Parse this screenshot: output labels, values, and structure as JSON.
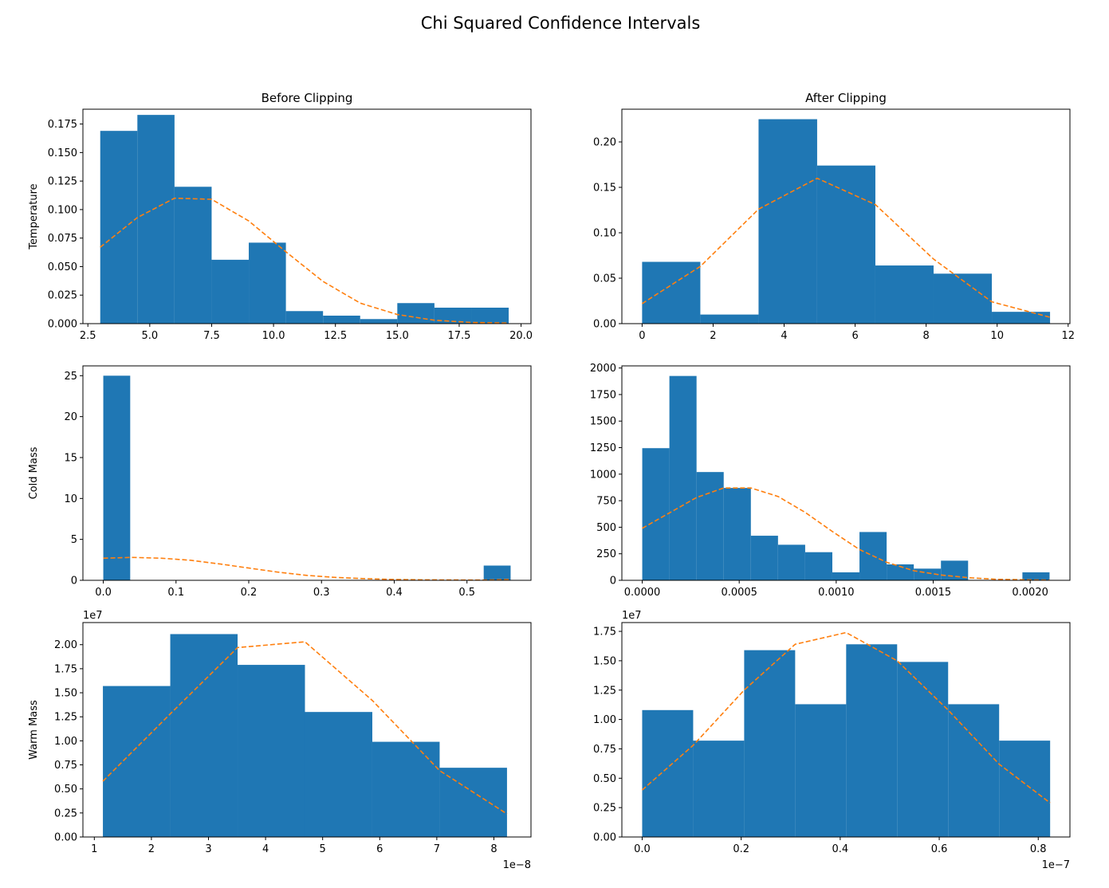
{
  "title": "Chi Squared Confidence Intervals",
  "colors": {
    "bar": "#1f77b4",
    "curve": "#ff7f0e",
    "background": "#ffffff",
    "axis": "#000000"
  },
  "chart_data": [
    {
      "type": "bar",
      "title": "Before Clipping",
      "ylabel": "Temperature",
      "xlim": [
        2.3,
        20.4
      ],
      "ylim": [
        0,
        0.188
      ],
      "xticks": [
        2.5,
        5,
        7.5,
        10,
        12.5,
        15,
        17.5,
        20
      ],
      "xtick_labels": [
        "2.5",
        "5.0",
        "7.5",
        "10.0",
        "12.5",
        "15.0",
        "17.5",
        "20.0"
      ],
      "yticks": [
        0,
        0.025,
        0.05,
        0.075,
        0.1,
        0.125,
        0.15,
        0.175
      ],
      "ytick_labels": [
        "0.000",
        "0.025",
        "0.050",
        "0.075",
        "0.100",
        "0.125",
        "0.150",
        "0.175"
      ],
      "bin_edges": [
        3.0,
        4.5,
        6.0,
        7.5,
        9.0,
        10.5,
        12.0,
        13.5,
        15.0,
        16.5,
        18.0,
        19.5
      ],
      "values": [
        0.169,
        0.183,
        0.12,
        0.056,
        0.071,
        0.011,
        0.007,
        0.004,
        0.018,
        0.014,
        0.014
      ],
      "curve_x": [
        3.0,
        4.5,
        6.0,
        7.5,
        9.0,
        10.5,
        12.0,
        13.5,
        15.0,
        16.5,
        18.0,
        19.5
      ],
      "curve_y": [
        0.067,
        0.093,
        0.11,
        0.109,
        0.09,
        0.063,
        0.037,
        0.018,
        0.008,
        0.003,
        0.001,
        0.0005
      ],
      "x_offset_text": ""
    },
    {
      "type": "bar",
      "title": "After Clipping",
      "ylabel": "",
      "xlim": [
        -0.57,
        12.05
      ],
      "ylim": [
        0,
        0.236
      ],
      "xticks": [
        0,
        2,
        4,
        6,
        8,
        10,
        12
      ],
      "xtick_labels": [
        "0",
        "2",
        "4",
        "6",
        "8",
        "10",
        "12"
      ],
      "yticks": [
        0,
        0.05,
        0.1,
        0.15,
        0.2
      ],
      "ytick_labels": [
        "0.00",
        "0.05",
        "0.10",
        "0.15",
        "0.20"
      ],
      "bin_edges": [
        0,
        1.64,
        3.28,
        4.93,
        6.57,
        8.21,
        9.85,
        11.49
      ],
      "values": [
        0.068,
        0.01,
        0.225,
        0.174,
        0.064,
        0.055,
        0.013
      ],
      "curve_x": [
        0,
        1.64,
        3.28,
        4.93,
        6.57,
        8.21,
        9.85,
        11.49
      ],
      "curve_y": [
        0.022,
        0.063,
        0.126,
        0.16,
        0.131,
        0.071,
        0.024,
        0.007
      ],
      "x_offset_text": ""
    },
    {
      "type": "bar",
      "title": "",
      "ylabel": "Cold Mass",
      "xlim": [
        -0.028,
        0.588
      ],
      "ylim": [
        0,
        26.2
      ],
      "xticks": [
        0,
        0.1,
        0.2,
        0.3,
        0.4,
        0.5
      ],
      "xtick_labels": [
        "0.0",
        "0.1",
        "0.2",
        "0.3",
        "0.4",
        "0.5"
      ],
      "yticks": [
        0,
        5,
        10,
        15,
        20,
        25
      ],
      "ytick_labels": [
        "0",
        "5",
        "10",
        "15",
        "20",
        "25"
      ],
      "bin_edges": [
        0,
        0.037,
        0.075,
        0.112,
        0.149,
        0.187,
        0.224,
        0.261,
        0.299,
        0.336,
        0.373,
        0.411,
        0.448,
        0.485,
        0.523,
        0.56
      ],
      "values": [
        25.0,
        0,
        0,
        0,
        0,
        0,
        0,
        0,
        0,
        0,
        0,
        0,
        0,
        0,
        1.8
      ],
      "curve_x": [
        0,
        0.04,
        0.08,
        0.12,
        0.16,
        0.2,
        0.24,
        0.28,
        0.32,
        0.36,
        0.4,
        0.44,
        0.48,
        0.52,
        0.56
      ],
      "curve_y": [
        2.7,
        2.8,
        2.7,
        2.45,
        2.0,
        1.5,
        1.0,
        0.6,
        0.35,
        0.2,
        0.1,
        0.06,
        0.04,
        0.03,
        0.1
      ],
      "x_offset_text": ""
    },
    {
      "type": "bar",
      "title": "",
      "ylabel": "",
      "xlim": [
        -0.000105,
        0.002205
      ],
      "ylim": [
        0,
        2020
      ],
      "xticks": [
        0,
        0.0005,
        0.001,
        0.0015,
        0.002
      ],
      "xtick_labels": [
        "0.0000",
        "0.0005",
        "0.0010",
        "0.0015",
        "0.0020"
      ],
      "yticks": [
        0,
        250,
        500,
        750,
        1000,
        1250,
        1500,
        1750,
        2000
      ],
      "ytick_labels": [
        "0",
        "250",
        "500",
        "750",
        "1000",
        "1250",
        "1500",
        "1750",
        "2000"
      ],
      "bin_edges": [
        0,
        0.00014,
        0.00028,
        0.00042,
        0.00056,
        0.0007,
        0.00084,
        0.00098,
        0.00112,
        0.00126,
        0.0014,
        0.00154,
        0.00168,
        0.00182,
        0.00196,
        0.0021
      ],
      "values": [
        1245,
        1925,
        1020,
        870,
        420,
        335,
        265,
        75,
        455,
        150,
        110,
        185,
        0,
        0,
        75
      ],
      "curve_x": [
        0,
        0.00028,
        0.00042,
        0.00056,
        0.0007,
        0.00084,
        0.00098,
        0.00112,
        0.00126,
        0.0014,
        0.00154,
        0.00168,
        0.00182,
        0.00196,
        0.0021
      ],
      "curve_y": [
        490,
        780,
        870,
        870,
        790,
        640,
        460,
        290,
        170,
        90,
        50,
        25,
        10,
        5,
        2
      ],
      "x_offset_text": ""
    },
    {
      "type": "bar",
      "title": "",
      "ylabel": "Warm Mass",
      "xlim": [
        8e-09,
        8.65e-08
      ],
      "ylim": [
        0,
        22300000
      ],
      "xticks": [
        1e-08,
        2e-08,
        3e-08,
        4e-08,
        5e-08,
        6e-08,
        7e-08,
        8e-08
      ],
      "xtick_labels": [
        "1",
        "2",
        "3",
        "4",
        "5",
        "6",
        "7",
        "8"
      ],
      "yticks": [
        0,
        2500000,
        5000000,
        7500000,
        10000000,
        12500000,
        15000000,
        17500000,
        20000000
      ],
      "ytick_labels": [
        "0.00",
        "0.25",
        "0.50",
        "0.75",
        "1.00",
        "1.25",
        "1.50",
        "1.75",
        "2.00"
      ],
      "bin_edges": [
        1.15e-08,
        2.33e-08,
        3.51e-08,
        4.69e-08,
        5.87e-08,
        7.05e-08,
        8.23e-08
      ],
      "values": [
        15700000,
        21100000,
        17900000,
        13000000,
        9900000,
        7200000
      ],
      "curve_x": [
        1.15e-08,
        2.33e-08,
        3.51e-08,
        4.69e-08,
        5.87e-08,
        7.05e-08,
        8.23e-08
      ],
      "curve_y": [
        5800000,
        12800000,
        19700000,
        20300000,
        14200000,
        6900000,
        2400000
      ],
      "x_offset_text": "1e−8",
      "y_offset_text": "1e7"
    },
    {
      "type": "bar",
      "title": "",
      "ylabel": "",
      "xlim": [
        -4.1e-09,
        8.64e-08
      ],
      "ylim": [
        0,
        18250000
      ],
      "xticks": [
        0,
        2e-08,
        4e-08,
        6e-08,
        8e-08
      ],
      "xtick_labels": [
        "0.0",
        "0.2",
        "0.4",
        "0.6",
        "0.8"
      ],
      "yticks": [
        0,
        2500000,
        5000000,
        7500000,
        10000000,
        12500000,
        15000000,
        17500000
      ],
      "ytick_labels": [
        "0.00",
        "0.25",
        "0.50",
        "0.75",
        "1.00",
        "1.25",
        "1.50",
        "1.75"
      ],
      "bin_edges": [
        0,
        1.03e-08,
        2.06e-08,
        3.09e-08,
        4.12e-08,
        5.15e-08,
        6.18e-08,
        7.21e-08,
        8.24e-08
      ],
      "values": [
        10800000,
        8200000,
        15900000,
        11300000,
        16400000,
        14900000,
        11300000,
        8200000
      ],
      "curve_x": [
        0,
        1.03e-08,
        2.06e-08,
        3.09e-08,
        4.12e-08,
        5.15e-08,
        6.18e-08,
        7.21e-08,
        8.24e-08
      ],
      "curve_y": [
        4000000,
        7800000,
        12500000,
        16400000,
        17400000,
        15000000,
        10800000,
        6200000,
        2900000
      ],
      "x_offset_text": "1e−7",
      "y_offset_text": "1e7"
    }
  ]
}
